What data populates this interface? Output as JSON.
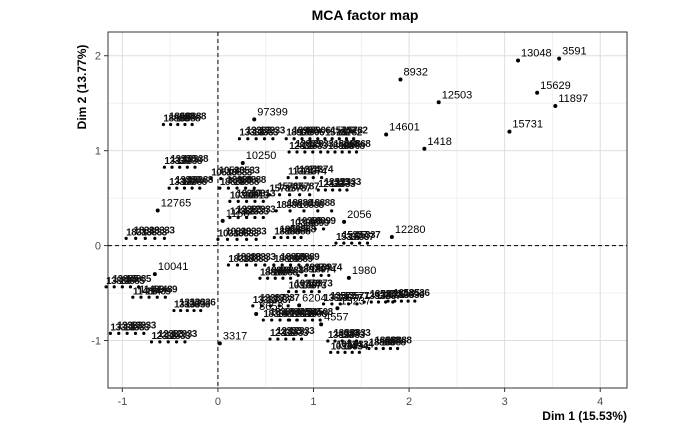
{
  "chart_data": {
    "type": "scatter",
    "title": "MCA factor map",
    "xlabel": "Dim 1 (15.53%)",
    "ylabel": "Dim 2 (13.77%)",
    "xlim": [
      -1.15,
      4.28
    ],
    "ylim": [
      -1.5,
      2.25
    ],
    "xticks": [
      "-1",
      "0",
      "1",
      "2",
      "3",
      "4"
    ],
    "yticks": [
      "-1",
      "0",
      "1",
      "2"
    ],
    "grid": true,
    "reference_lines": {
      "x": 0,
      "y": 0,
      "style": "dashed"
    },
    "labeled_points": [
      {
        "label": "13048",
        "x": 3.14,
        "y": 1.95
      },
      {
        "label": "3591",
        "x": 3.57,
        "y": 1.97
      },
      {
        "label": "15629",
        "x": 3.34,
        "y": 1.61
      },
      {
        "label": "11897",
        "x": 3.53,
        "y": 1.47
      },
      {
        "label": "15731",
        "x": 3.05,
        "y": 1.2
      },
      {
        "label": "8932",
        "x": 1.91,
        "y": 1.75
      },
      {
        "label": "12503",
        "x": 2.31,
        "y": 1.51
      },
      {
        "label": "14601",
        "x": 1.76,
        "y": 1.17
      },
      {
        "label": "1418",
        "x": 2.16,
        "y": 1.02
      },
      {
        "label": "97399",
        "x": 0.38,
        "y": 1.33
      },
      {
        "label": "10250",
        "x": 0.26,
        "y": 0.87
      },
      {
        "label": "1156",
        "x": 0.05,
        "y": 0.26
      },
      {
        "label": "12765",
        "x": -0.63,
        "y": 0.37
      },
      {
        "label": "10041",
        "x": -0.66,
        "y": -0.3
      },
      {
        "label": "3317",
        "x": 0.02,
        "y": -1.03
      },
      {
        "label": "15237",
        "x": 1.25,
        "y": -0.66
      },
      {
        "label": "4557",
        "x": 1.08,
        "y": -0.83
      },
      {
        "label": "1980",
        "x": 1.37,
        "y": -0.34
      },
      {
        "label": "12280",
        "x": 1.82,
        "y": 0.09
      },
      {
        "label": "8653",
        "x": 0.4,
        "y": -0.72
      },
      {
        "label": "6204",
        "x": 0.85,
        "y": -0.63
      },
      {
        "label": "2056",
        "x": 1.32,
        "y": 0.25
      }
    ],
    "clusters": [
      {
        "label": "18888",
        "x": -0.42,
        "y": 1.36,
        "w": 0.3
      },
      {
        "label": "13333",
        "x": 0.4,
        "y": 1.21,
        "w": 0.35
      },
      {
        "label": "18906",
        "x": 0.88,
        "y": 1.21,
        "w": 0.33
      },
      {
        "label": "15782",
        "x": 1.27,
        "y": 1.21,
        "w": 0.3
      },
      {
        "label": "12833",
        "x": 0.91,
        "y": 1.07,
        "w": 0.33
      },
      {
        "label": "18868",
        "x": 1.3,
        "y": 1.07,
        "w": 0.3
      },
      {
        "label": "13338",
        "x": -0.4,
        "y": 0.91,
        "w": 0.32
      },
      {
        "label": "13388",
        "x": -0.35,
        "y": 0.69,
        "w": 0.32
      },
      {
        "label": "10533",
        "x": 0.13,
        "y": 0.79,
        "w": 0.4
      },
      {
        "label": "11374",
        "x": 0.91,
        "y": 0.8,
        "w": 0.35
      },
      {
        "label": "18888",
        "x": 0.2,
        "y": 0.69,
        "w": 0.36
      },
      {
        "label": "15787",
        "x": 0.75,
        "y": 0.62,
        "w": 0.42
      },
      {
        "label": "12333",
        "x": 1.2,
        "y": 0.67,
        "w": 0.3
      },
      {
        "label": "10313",
        "x": 0.3,
        "y": 0.55,
        "w": 0.35
      },
      {
        "label": "18888",
        "x": 0.9,
        "y": 0.45,
        "w": 0.58
      },
      {
        "label": "12333",
        "x": 0.3,
        "y": 0.38,
        "w": 0.35
      },
      {
        "label": "10399",
        "x": 0.93,
        "y": 0.26,
        "w": 0.35
      },
      {
        "label": "18333",
        "x": -0.76,
        "y": 0.16,
        "w": 0.4
      },
      {
        "label": "10333",
        "x": 0.2,
        "y": 0.15,
        "w": 0.4
      },
      {
        "label": "18888",
        "x": 0.73,
        "y": 0.17,
        "w": 0.28
      },
      {
        "label": "15337",
        "x": 1.4,
        "y": 0.11,
        "w": 0.33
      },
      {
        "label": "18333",
        "x": 0.3,
        "y": -0.12,
        "w": 0.38
      },
      {
        "label": "18889",
        "x": 0.76,
        "y": -0.12,
        "w": 0.35
      },
      {
        "label": "18888",
        "x": 0.6,
        "y": -0.26,
        "w": 0.32
      },
      {
        "label": "18974",
        "x": 1.0,
        "y": -0.23,
        "w": 0.32
      },
      {
        "label": "13885",
        "x": -1.0,
        "y": -0.35,
        "w": 0.34
      },
      {
        "label": "11489",
        "x": -0.72,
        "y": -0.46,
        "w": 0.34
      },
      {
        "label": "10373",
        "x": 0.9,
        "y": -0.4,
        "w": 0.32
      },
      {
        "label": "13337",
        "x": 0.55,
        "y": -0.55,
        "w": 0.37
      },
      {
        "label": "13577",
        "x": 1.28,
        "y": -0.53,
        "w": 0.35
      },
      {
        "label": "13537",
        "x": 1.68,
        "y": -0.51,
        "w": 0.3
      },
      {
        "label": "13536",
        "x": 1.92,
        "y": -0.5,
        "w": 0.28
      },
      {
        "label": "13336",
        "x": -0.32,
        "y": -0.6,
        "w": 0.28
      },
      {
        "label": "18389",
        "x": 0.65,
        "y": -0.7,
        "w": 0.35
      },
      {
        "label": "11508",
        "x": 0.91,
        "y": -0.7,
        "w": 0.32
      },
      {
        "label": "13333",
        "x": -0.95,
        "y": -0.84,
        "w": 0.35
      },
      {
        "label": "12333",
        "x": -0.52,
        "y": -0.93,
        "w": 0.35
      },
      {
        "label": "12333",
        "x": 0.71,
        "y": -0.9,
        "w": 0.33
      },
      {
        "label": "13833",
        "x": 1.3,
        "y": -0.92,
        "w": 0.3
      },
      {
        "label": "10334",
        "x": 1.33,
        "y": -1.04,
        "w": 0.3
      },
      {
        "label": "18888",
        "x": 1.73,
        "y": -1.0,
        "w": 0.3
      }
    ]
  }
}
